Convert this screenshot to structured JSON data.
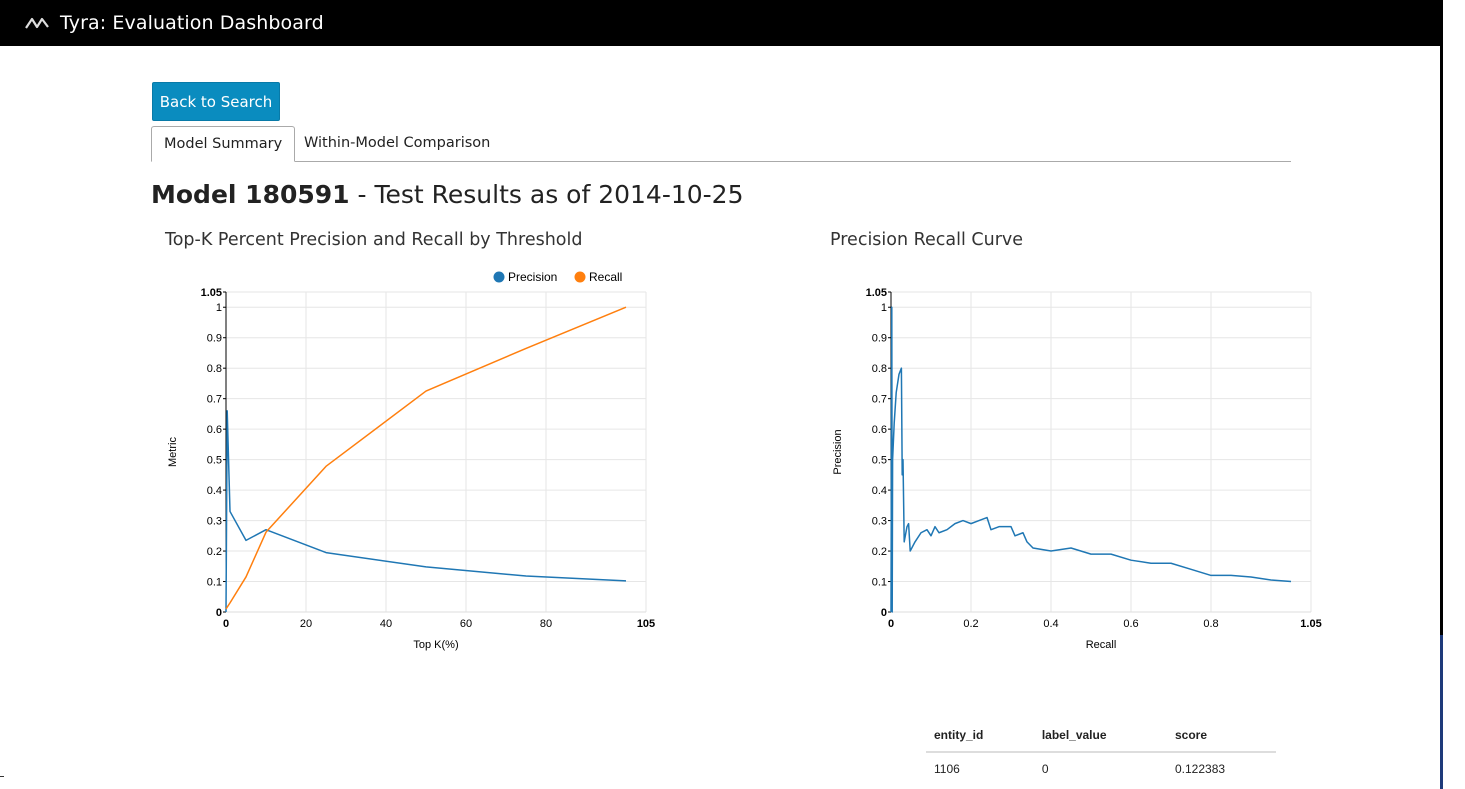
{
  "app": {
    "title": "Tyra: Evaluation Dashboard",
    "logo_icon": "wave-logo-icon"
  },
  "back_button": {
    "label": "Back to Search"
  },
  "tabs": [
    {
      "label": "Model Summary",
      "active": true
    },
    {
      "label": "Within-Model Comparison",
      "active": false
    }
  ],
  "heading": {
    "model": "Model 180591",
    "suffix": " - Test Results as of 2014-10-25"
  },
  "colors": {
    "precision": "#1f77b4",
    "recall": "#ff7f0e",
    "button": "#0a8cbf",
    "topbar": "#000000"
  },
  "chart_data": [
    {
      "type": "line",
      "title": "Top-K Percent Precision and Recall by Threshold",
      "xlabel": "Top K(%)",
      "ylabel": "Metric",
      "xlim": [
        0,
        105
      ],
      "ylim": [
        0,
        1.05
      ],
      "x_ticks": [
        "0",
        "20",
        "40",
        "60",
        "80",
        "105"
      ],
      "y_ticks": [
        "0",
        "0.1",
        "0.2",
        "0.3",
        "0.4",
        "0.5",
        "0.6",
        "0.7",
        "0.8",
        "0.9",
        "1",
        "1.05"
      ],
      "legend": "top-right",
      "grid": true,
      "series": [
        {
          "name": "Precision",
          "points": [
            [
              0,
              0
            ],
            [
              0.3,
              0.66
            ],
            [
              1,
              0.33
            ],
            [
              5,
              0.235
            ],
            [
              10,
              0.27
            ],
            [
              25,
              0.195
            ],
            [
              50,
              0.148
            ],
            [
              75,
              0.118
            ],
            [
              100,
              0.102
            ]
          ]
        },
        {
          "name": "Recall",
          "points": [
            [
              0,
              0.01
            ],
            [
              1,
              0.03
            ],
            [
              5,
              0.115
            ],
            [
              10,
              0.262
            ],
            [
              25,
              0.478
            ],
            [
              50,
              0.725
            ],
            [
              75,
              0.865
            ],
            [
              100,
              1.0
            ]
          ]
        }
      ]
    },
    {
      "type": "line",
      "title": "Precision Recall Curve",
      "xlabel": "Recall",
      "ylabel": "Precision",
      "xlim": [
        0,
        1.05
      ],
      "ylim": [
        0,
        1.05
      ],
      "x_ticks": [
        "0",
        "0.2",
        "0.4",
        "0.6",
        "0.8",
        "1.05"
      ],
      "y_ticks": [
        "0",
        "0.1",
        "0.2",
        "0.3",
        "0.4",
        "0.5",
        "0.6",
        "0.7",
        "0.8",
        "0.9",
        "1",
        "1.05"
      ],
      "grid": true,
      "series": [
        {
          "points": [
            [
              0,
              0
            ],
            [
              0.002,
              1.0
            ],
            [
              0.003,
              0.0
            ],
            [
              0.004,
              0.5
            ],
            [
              0.008,
              0.62
            ],
            [
              0.013,
              0.72
            ],
            [
              0.02,
              0.78
            ],
            [
              0.026,
              0.8
            ],
            [
              0.028,
              0.45
            ],
            [
              0.03,
              0.5
            ],
            [
              0.033,
              0.23
            ],
            [
              0.04,
              0.28
            ],
            [
              0.044,
              0.29
            ],
            [
              0.048,
              0.2
            ],
            [
              0.06,
              0.23
            ],
            [
              0.075,
              0.26
            ],
            [
              0.09,
              0.27
            ],
            [
              0.1,
              0.25
            ],
            [
              0.11,
              0.28
            ],
            [
              0.12,
              0.26
            ],
            [
              0.14,
              0.27
            ],
            [
              0.16,
              0.29
            ],
            [
              0.18,
              0.3
            ],
            [
              0.2,
              0.29
            ],
            [
              0.22,
              0.3
            ],
            [
              0.24,
              0.31
            ],
            [
              0.25,
              0.27
            ],
            [
              0.27,
              0.28
            ],
            [
              0.3,
              0.28
            ],
            [
              0.31,
              0.25
            ],
            [
              0.33,
              0.26
            ],
            [
              0.34,
              0.23
            ],
            [
              0.355,
              0.21
            ],
            [
              0.4,
              0.2
            ],
            [
              0.45,
              0.21
            ],
            [
              0.5,
              0.19
            ],
            [
              0.55,
              0.19
            ],
            [
              0.6,
              0.17
            ],
            [
              0.65,
              0.16
            ],
            [
              0.7,
              0.16
            ],
            [
              0.75,
              0.14
            ],
            [
              0.8,
              0.12
            ],
            [
              0.85,
              0.12
            ],
            [
              0.9,
              0.115
            ],
            [
              0.95,
              0.105
            ],
            [
              1.0,
              0.1
            ]
          ]
        }
      ]
    }
  ],
  "table": {
    "headers": [
      "entity_id",
      "label_value",
      "score"
    ],
    "rows": [
      [
        "1106",
        "0",
        "0.122383"
      ]
    ]
  }
}
